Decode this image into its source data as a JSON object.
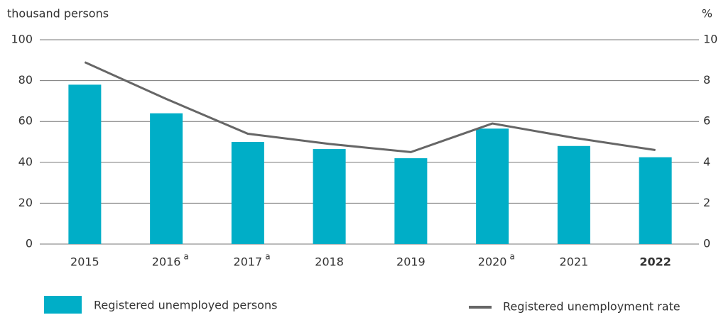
{
  "chart_data": {
    "type": "bar_line",
    "y_axis_label": "thousand persons",
    "y2_axis_label": "%",
    "categories": [
      "2015",
      "2016",
      "2017",
      "2018",
      "2019",
      "2020",
      "2021",
      "2022"
    ],
    "category_superscripts": [
      null,
      "a",
      "a",
      null,
      null,
      "a",
      null,
      null
    ],
    "highlight_category": "2022",
    "series": [
      {
        "name": "Registered unemployed persons",
        "type": "bar",
        "color": "#00aec7",
        "values": [
          78,
          64,
          50,
          46.5,
          42,
          56.5,
          48,
          42.5
        ]
      },
      {
        "name": "Registered unemployment rate",
        "type": "line",
        "axis": "y2",
        "color": "#666666",
        "values": [
          8.9,
          7.1,
          5.4,
          4.9,
          4.5,
          5.9,
          5.2,
          4.6
        ]
      }
    ],
    "ylim": [
      0,
      100
    ],
    "yticks": [
      0,
      20,
      40,
      60,
      80,
      100
    ],
    "y2lim": [
      0,
      10
    ],
    "y2ticks": [
      0,
      2,
      4,
      6,
      8,
      10
    ],
    "grid": true
  }
}
